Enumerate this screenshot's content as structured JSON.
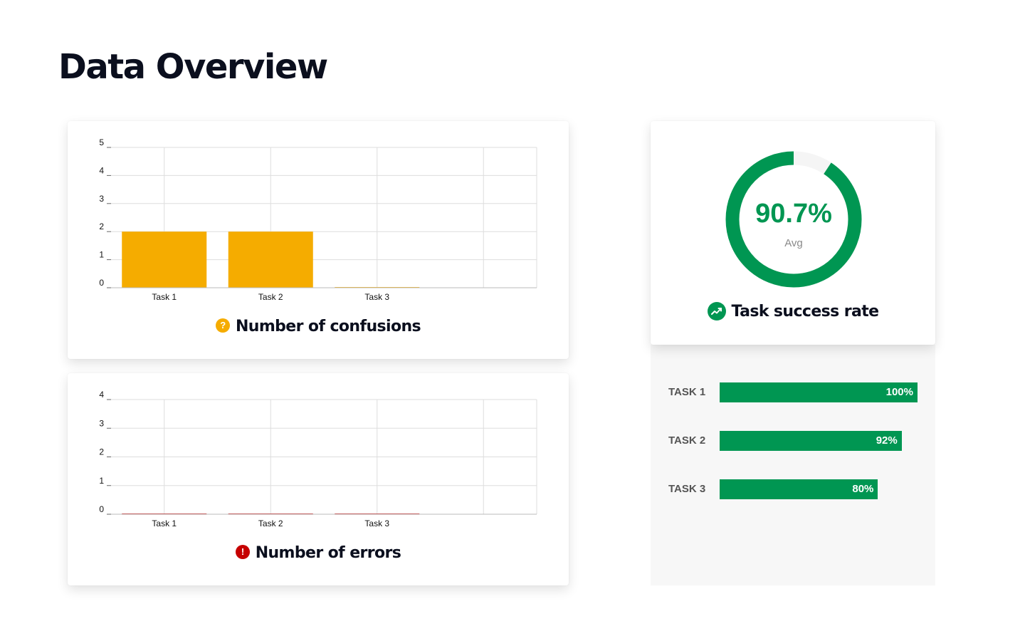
{
  "page": {
    "title": "Data Overview"
  },
  "colors": {
    "confusion_bar": "#f5ac00",
    "error_bar": "#c60000",
    "success": "#009652",
    "track": "#f5f5f5",
    "grid": "#dddddd"
  },
  "confusions_card": {
    "caption": "Number of confusions",
    "icon": "question-icon"
  },
  "errors_card": {
    "caption": "Number of errors",
    "icon": "exclamation-icon"
  },
  "success_card": {
    "value_text": "90.7%",
    "label": "Avg",
    "caption": "Task success rate",
    "icon": "trend-up-icon"
  },
  "chart_data": [
    {
      "type": "bar",
      "title": "Number of confusions",
      "categories": [
        "Task 1",
        "Task 2",
        "Task 3"
      ],
      "values": [
        2,
        2,
        0
      ],
      "ylim": [
        0,
        5
      ],
      "yticks": [
        0,
        1,
        2,
        3,
        4,
        5
      ],
      "grid": true,
      "color": "#f5ac00"
    },
    {
      "type": "bar",
      "title": "Number of errors",
      "categories": [
        "Task 1",
        "Task 2",
        "Task 3"
      ],
      "values": [
        0,
        0,
        0
      ],
      "ylim": [
        0,
        4
      ],
      "yticks": [
        0,
        1,
        2,
        3,
        4
      ],
      "grid": true,
      "color": "#c60000"
    },
    {
      "type": "pie",
      "title": "Task success rate",
      "value": 90.7,
      "value_text": "90.7%",
      "label": "Avg"
    },
    {
      "type": "bar",
      "categories": [
        "TASK 1",
        "TASK 2",
        "TASK 3"
      ],
      "values": [
        100,
        92,
        80
      ],
      "value_labels": [
        "100%",
        "92%",
        "80%"
      ],
      "xlim": [
        0,
        100
      ]
    }
  ],
  "task_rates": [
    {
      "label": "TASK 1",
      "percent": 100,
      "value_text": "100%"
    },
    {
      "label": "TASK 2",
      "percent": 92,
      "value_text": "92%"
    },
    {
      "label": "TASK 3",
      "percent": 80,
      "value_text": "80%"
    }
  ]
}
